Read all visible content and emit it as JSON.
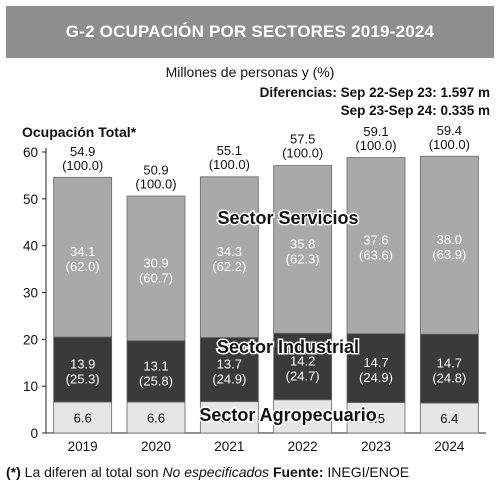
{
  "header": {
    "title": "G-2    OCUPACIÓN POR SECTORES 2019-2024",
    "subtitle": "Millones de personas y (%)",
    "diff_line1": "Diferencias: Sep 22-Sep 23: 1.597 m",
    "diff_line2": "Sep 23-Sep 24: 0.335 m"
  },
  "footnote": {
    "mark": "(*)",
    "text": " La diferen al total son ",
    "italic": "No especificados",
    "source_label": " Fuente:",
    "source": " INEGI/ENOE"
  },
  "chart_data": {
    "type": "bar",
    "stacked": true,
    "total_label": "Ocupación Total*",
    "categories": [
      "2019",
      "2020",
      "2021",
      "2022",
      "2023",
      "2024"
    ],
    "ylim": [
      0,
      60
    ],
    "yticks": [
      0,
      10,
      20,
      30,
      40,
      50,
      60
    ],
    "totals": [
      54.9,
      50.9,
      55.1,
      57.5,
      59.1,
      59.4
    ],
    "total_labels": [
      "54.9",
      "50.9",
      "55.1",
      "57.5",
      "59.1",
      "59.4"
    ],
    "total_pct_labels": [
      "(100.0)",
      "(100.0)",
      "(100.0)",
      "(100.0)",
      "(100.0)",
      "(100.0)"
    ],
    "series": [
      {
        "name": "Sector Agropecuario",
        "color": "#e6e6e6",
        "text_color": "#111111",
        "values": [
          6.6,
          6.6,
          6.7,
          7.1,
          6.5,
          6.4
        ],
        "labels": [
          "6.6",
          "6.6",
          "6.7",
          "7.1",
          "6.5",
          "6.4"
        ],
        "pct_labels": [
          "",
          "",
          "",
          "",
          "",
          ""
        ]
      },
      {
        "name": "Sector Industrial",
        "color": "#3a3a3a",
        "text_color": "#ffffff",
        "values": [
          13.9,
          13.1,
          13.7,
          14.2,
          14.7,
          14.7
        ],
        "labels": [
          "13.9",
          "13.1",
          "13.7",
          "14.2",
          "14.7",
          "14.7"
        ],
        "pct_labels": [
          "(25.3)",
          "(25.8)",
          "(24.9)",
          "(24.7)",
          "(24.9)",
          "(24.8)"
        ]
      },
      {
        "name": "Sector Servicios",
        "color": "#a9a9a9",
        "text_color": "#ffffff",
        "values": [
          34.1,
          30.9,
          34.3,
          35.8,
          37.6,
          38.0
        ],
        "labels": [
          "34.1",
          "30.9",
          "34.3",
          "35.8",
          "37.6",
          "38.0"
        ],
        "pct_labels": [
          "(62.0)",
          "(60.7)",
          "(62.2)",
          "(62.3)",
          "(63.6)",
          "(63.9)"
        ]
      }
    ]
  }
}
